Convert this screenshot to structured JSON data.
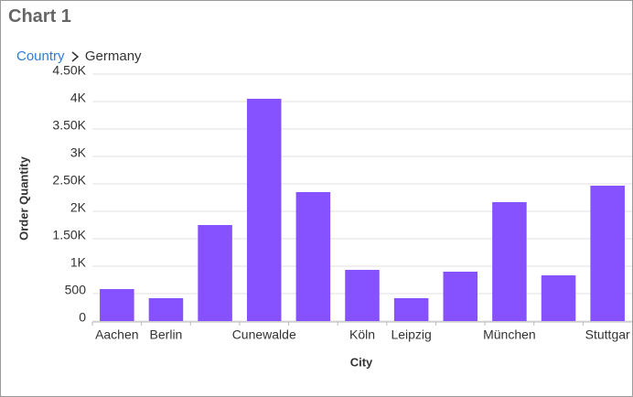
{
  "header": {
    "title": "Chart 1"
  },
  "breadcrumb": [
    "Country",
    "Germany"
  ],
  "chart_data": {
    "type": "bar",
    "x_label": "City",
    "y_label": "Order Quantity",
    "categories": [
      "Aachen",
      "Berlin",
      null,
      "Cunewalde",
      null,
      "Köln",
      "Leipzig",
      null,
      "München",
      null,
      "Stuttgar"
    ],
    "values": [
      583,
      417,
      1750,
      4050,
      2350,
      933,
      417,
      900,
      2167,
      833,
      2467
    ],
    "color": "#8652ff",
    "ylim": [
      0,
      4500
    ],
    "yticks": [
      0,
      500,
      {
        "value": 1000,
        "label": "1K"
      },
      {
        "value": 1500,
        "label": "1.50K"
      },
      {
        "value": 2000,
        "label": "2K"
      },
      {
        "value": 2500,
        "label": "2.50K"
      },
      {
        "value": 3000,
        "label": "3K"
      },
      {
        "value": 3500,
        "label": "3.50K"
      },
      {
        "value": 4000,
        "label": "4K"
      },
      {
        "value": 4500,
        "label": "4.50K"
      }
    ],
    "grid": true
  }
}
